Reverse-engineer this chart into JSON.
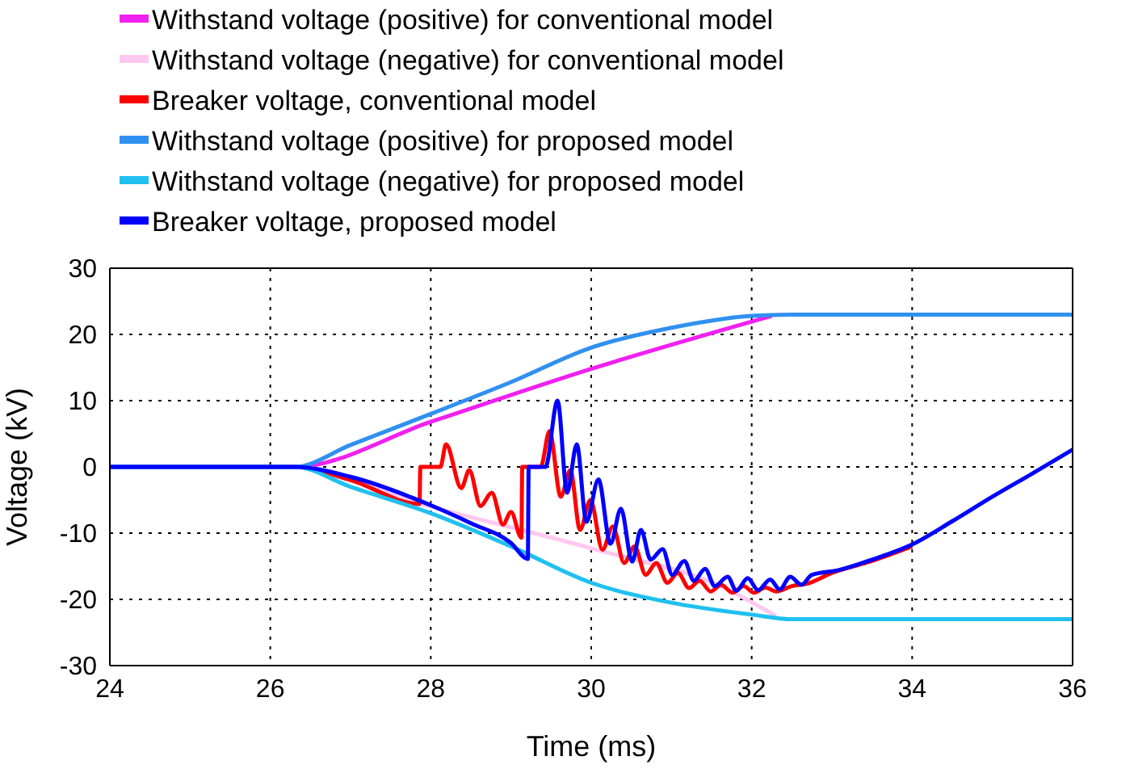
{
  "chart_data": {
    "type": "line",
    "xlabel": "Time (ms)",
    "ylabel": "Voltage (kV)",
    "xlim": [
      24,
      36
    ],
    "ylim": [
      -30,
      30
    ],
    "xticks": [
      24,
      26,
      28,
      30,
      32,
      34,
      36
    ],
    "yticks": [
      -30,
      -20,
      -10,
      0,
      10,
      20,
      30
    ],
    "grid": true,
    "legend": "top",
    "marker": "none",
    "line_style": "solid",
    "series": [
      {
        "name": "Withstand voltage (positive) for conventional model",
        "color": "#f020f0",
        "x": [
          24,
          26.3,
          28,
          30,
          32.25
        ],
        "values": [
          0,
          0,
          6.8,
          14.8,
          22.8
        ]
      },
      {
        "name": "Withstand voltage (negative) for conventional model",
        "color": "#ffc8f0",
        "x": [
          24,
          26.3,
          28,
          30,
          31.7,
          32.3
        ],
        "values": [
          0,
          0,
          -6,
          -12.3,
          -18.5,
          -22.5
        ]
      },
      {
        "name": "Breaker voltage, conventional model",
        "color": "#ff0000",
        "x": [
          24,
          26.3,
          27,
          27.86,
          27.87,
          28.12,
          28.19,
          28.38,
          28.48,
          28.62,
          28.76,
          28.9,
          29.0,
          29.13,
          29.14,
          29.37,
          29.48,
          29.62,
          29.74,
          29.86,
          29.99,
          30.14,
          30.27,
          30.41,
          30.54,
          30.68,
          30.81,
          30.95,
          31.08,
          31.22,
          31.35,
          31.49,
          31.62,
          31.76,
          31.9,
          32.03,
          32.17,
          32.3,
          32.5,
          32.7,
          33,
          33.5,
          34
        ],
        "values": [
          0,
          0,
          -2,
          -5.6,
          0,
          0,
          3.4,
          -3.2,
          -0.5,
          -5.9,
          -3.9,
          -8.7,
          -6.8,
          -10.7,
          0,
          0,
          5.4,
          -4.5,
          -0.5,
          -9.5,
          -5,
          -12.5,
          -9,
          -14.5,
          -12,
          -16.3,
          -14.5,
          -17.5,
          -16,
          -18.3,
          -17.2,
          -18.8,
          -17.8,
          -19,
          -18,
          -19,
          -18.2,
          -18.8,
          -18,
          -17.6,
          -16,
          -14.2,
          -12
        ]
      },
      {
        "name": "Withstand voltage (positive) for proposed model",
        "color": "#3090f0",
        "x": [
          24,
          26.3,
          27,
          28,
          29,
          30,
          31,
          32,
          32.5,
          36
        ],
        "values": [
          0,
          0,
          3.3,
          8,
          12.8,
          18,
          21,
          22.8,
          23,
          23
        ]
      },
      {
        "name": "Withstand voltage (negative) for proposed model",
        "color": "#20c0f0",
        "x": [
          24,
          26.3,
          27,
          28,
          29,
          30,
          31,
          32,
          32.5,
          36
        ],
        "values": [
          0,
          0,
          -3,
          -7,
          -12,
          -17.5,
          -20.5,
          -22.3,
          -23,
          -23
        ]
      },
      {
        "name": "Breaker voltage, proposed model",
        "color": "#0000ff",
        "x": [
          24,
          26.3,
          27,
          28,
          28.5,
          29,
          29.21,
          29.22,
          29.43,
          29.58,
          29.7,
          29.82,
          29.94,
          30.09,
          30.24,
          30.37,
          30.51,
          30.62,
          30.74,
          30.89,
          31.01,
          31.16,
          31.28,
          31.42,
          31.54,
          31.7,
          31.81,
          31.95,
          32.08,
          32.23,
          32.35,
          32.48,
          32.62,
          32.75,
          33.08,
          33.5,
          34,
          34.5,
          35,
          35.5,
          36
        ],
        "values": [
          0,
          0,
          -1.5,
          -5.8,
          -8.5,
          -11.5,
          -13.9,
          0,
          0,
          10,
          -3.9,
          3.4,
          -8.3,
          -1.9,
          -11.6,
          -6.3,
          -14.3,
          -9.5,
          -14,
          -12.4,
          -16.3,
          -14.2,
          -17.2,
          -15.4,
          -18,
          -16.6,
          -18.7,
          -16.8,
          -18.6,
          -17,
          -18.5,
          -16.6,
          -17.8,
          -16.3,
          -15.6,
          -14,
          -11.7,
          -8.2,
          -4.5,
          -1,
          2.6
        ]
      }
    ]
  }
}
